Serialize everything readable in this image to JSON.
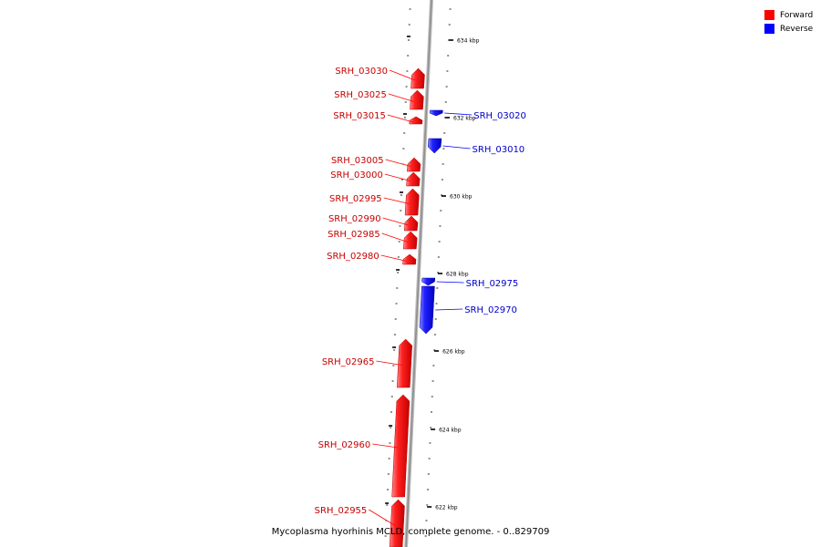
{
  "caption": "Mycoplasma hyorhinis MCLD, complete genome. - 0..829709",
  "legend": [
    {
      "label": "Forward",
      "color": "#ff0000"
    },
    {
      "label": "Reverse",
      "color": "#0000ff"
    }
  ],
  "colors": {
    "forward": "#ff0000",
    "forward_label": "#c80000",
    "reverse": "#0000ff",
    "reverse_label": "#0000c8",
    "backbone": "#9a9a9a"
  },
  "ticks": [
    {
      "label": "634 kbp"
    },
    {
      "label": "632 kbp"
    },
    {
      "label": "630 kbp"
    },
    {
      "label": "628 kbp"
    },
    {
      "label": "626 kbp"
    },
    {
      "label": "624 kbp"
    },
    {
      "label": "622 kbp"
    }
  ],
  "genes": [
    {
      "id": "SRH_03030",
      "strand": "forward"
    },
    {
      "id": "SRH_03025",
      "strand": "forward"
    },
    {
      "id": "SRH_03020",
      "strand": "reverse"
    },
    {
      "id": "SRH_03015",
      "strand": "forward"
    },
    {
      "id": "SRH_03010",
      "strand": "reverse"
    },
    {
      "id": "SRH_03005",
      "strand": "forward"
    },
    {
      "id": "SRH_03000",
      "strand": "forward"
    },
    {
      "id": "SRH_02995",
      "strand": "forward"
    },
    {
      "id": "SRH_02990",
      "strand": "forward"
    },
    {
      "id": "SRH_02985",
      "strand": "forward"
    },
    {
      "id": "SRH_02980",
      "strand": "forward"
    },
    {
      "id": "SRH_02975",
      "strand": "reverse"
    },
    {
      "id": "SRH_02970",
      "strand": "reverse"
    },
    {
      "id": "SRH_02965",
      "strand": "forward"
    },
    {
      "id": "SRH_02960",
      "strand": "forward"
    },
    {
      "id": "SRH_02955",
      "strand": "forward"
    }
  ]
}
